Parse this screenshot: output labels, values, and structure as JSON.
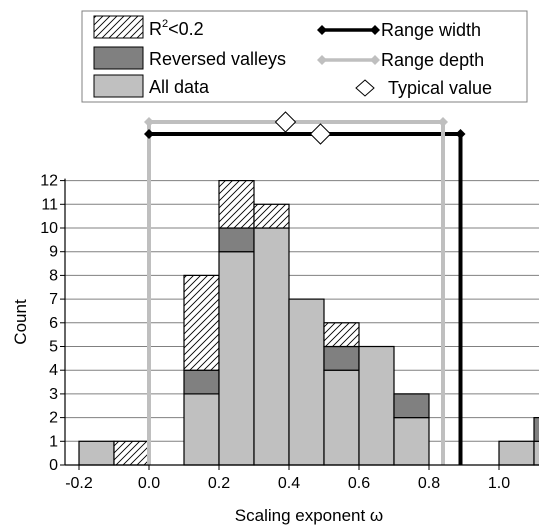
{
  "chart_data": {
    "type": "bar",
    "xlabel": "Scaling exponent ω",
    "ylabel": "Count",
    "xlim": [
      -0.2,
      1.1
    ],
    "ylim": [
      0,
      12
    ],
    "x_ticks": [
      "-0.2",
      "0.0",
      "0.2",
      "0.4",
      "0.6",
      "0.8",
      "1.0"
    ],
    "x_tick_values": [
      -0.2,
      0.0,
      0.2,
      0.4,
      0.6,
      0.8,
      1.0
    ],
    "y_ticks": [
      "0",
      "1",
      "2",
      "3",
      "4",
      "5",
      "6",
      "7",
      "8",
      "9",
      "10",
      "11",
      "12"
    ],
    "grid": "horizontal",
    "legend_placement": "top",
    "bins": [
      {
        "left": -0.2,
        "right": -0.1,
        "all_data": 1,
        "reversed_valleys": 0,
        "r2_low": 0
      },
      {
        "left": -0.1,
        "right": 0.0,
        "all_data": 0,
        "reversed_valleys": 0,
        "r2_low": 1
      },
      {
        "left": 0.1,
        "right": 0.2,
        "all_data": 3,
        "reversed_valleys": 1,
        "r2_low": 4
      },
      {
        "left": 0.2,
        "right": 0.3,
        "all_data": 9,
        "reversed_valleys": 1,
        "r2_low": 2
      },
      {
        "left": 0.3,
        "right": 0.4,
        "all_data": 10,
        "reversed_valleys": 0,
        "r2_low": 1
      },
      {
        "left": 0.4,
        "right": 0.5,
        "all_data": 7,
        "reversed_valleys": 0,
        "r2_low": 0
      },
      {
        "left": 0.5,
        "right": 0.6,
        "all_data": 4,
        "reversed_valleys": 1,
        "r2_low": 1
      },
      {
        "left": 0.6,
        "right": 0.7,
        "all_data": 5,
        "reversed_valleys": 0,
        "r2_low": 0
      },
      {
        "left": 0.7,
        "right": 0.8,
        "all_data": 2,
        "reversed_valleys": 1,
        "r2_low": 0
      },
      {
        "left": 1.0,
        "right": 1.1,
        "all_data": 1,
        "reversed_valleys": 0,
        "r2_low": 0
      },
      {
        "left": 1.1,
        "right": 1.2,
        "all_data": 1,
        "reversed_valleys": 1,
        "r2_low": 0
      }
    ],
    "series": [
      {
        "name": "R²<0.2",
        "key": "r2_low",
        "color": "#ffffff",
        "pattern": "hatch"
      },
      {
        "name": "Reversed valleys",
        "key": "reversed_valleys",
        "color": "#808080"
      },
      {
        "name": "All data",
        "key": "all_data",
        "color": "#c0c0c0"
      }
    ],
    "range_width": {
      "name": "Range width",
      "x_min": 0.0,
      "x_max": 0.89,
      "color": "#000000"
    },
    "range_depth": {
      "name": "Range depth",
      "x_min": 0.0,
      "x_max": 0.84,
      "color": "#bfbfbf"
    },
    "typical_values": {
      "name": "Typical value",
      "points": [
        0.39,
        0.49
      ]
    },
    "legend": {
      "r2_label_main": "R",
      "r2_label_sup": "2",
      "r2_label_rest": "<0.2",
      "reversed_valleys": "Reversed valleys",
      "all_data": "All data",
      "range_width": "Range width",
      "range_depth": "Range depth",
      "typical_value": "Typical value"
    }
  }
}
